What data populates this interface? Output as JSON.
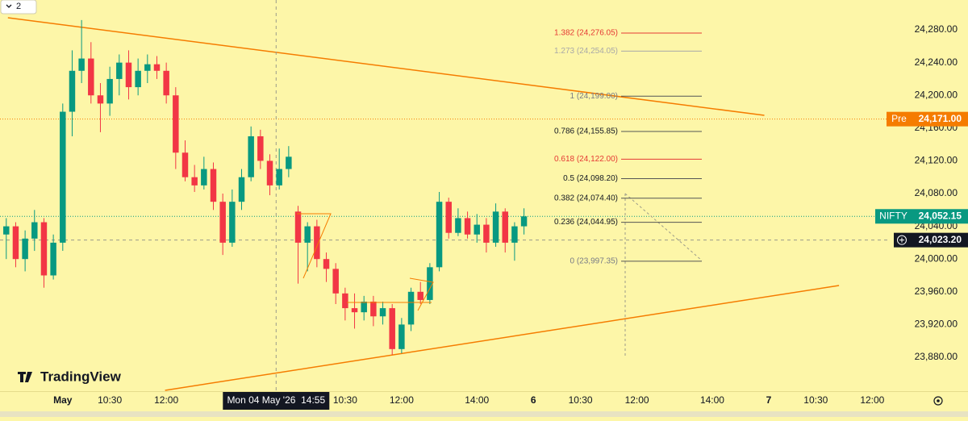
{
  "chart_data": {
    "type": "candlestick",
    "legend_toggle": "2",
    "watermark": "TradingView",
    "up_color": "#089981",
    "down_color": "#f23645",
    "xlim": [
      -100,
      1314
    ],
    "ylim": [
      23838.6,
      24316.5
    ],
    "xticks": [
      {
        "value": 0,
        "label": "May"
      },
      {
        "value": 75,
        "label": "10:30"
      },
      {
        "value": 165,
        "label": "12:00"
      },
      {
        "value": 450,
        "label": "10:30"
      },
      {
        "value": 540,
        "label": "12:00"
      },
      {
        "value": 660,
        "label": "14:00"
      },
      {
        "value": 750,
        "label": "6"
      },
      {
        "value": 825,
        "label": "10:30"
      },
      {
        "value": 915,
        "label": "12:00"
      },
      {
        "value": 1035,
        "label": "14:00"
      },
      {
        "value": 1125,
        "label": "7"
      },
      {
        "value": 1200,
        "label": "10:30"
      },
      {
        "value": 1290,
        "label": "12:00"
      }
    ],
    "yticks": [
      {
        "value": 23880,
        "label": "23,880.00"
      },
      {
        "value": 23920,
        "label": "23,920.00"
      },
      {
        "value": 23960,
        "label": "23,960.00"
      },
      {
        "value": 24000,
        "label": "24,000.00"
      },
      {
        "value": 24040,
        "label": "24,040.00"
      },
      {
        "value": 24080,
        "label": "24,080.00"
      },
      {
        "value": 24120,
        "label": "24,120.00"
      },
      {
        "value": 24160,
        "label": "24,160.00"
      },
      {
        "value": 24200,
        "label": "24,200.00"
      },
      {
        "value": 24240,
        "label": "24,240.00"
      },
      {
        "value": 24280,
        "label": "24,280.00"
      }
    ],
    "x": [
      -90,
      -75,
      -60,
      -45,
      -30,
      -15,
      0,
      15,
      30,
      45,
      60,
      75,
      90,
      105,
      120,
      135,
      150,
      165,
      180,
      195,
      210,
      225,
      240,
      255,
      270,
      285,
      300,
      315,
      330,
      345,
      360,
      375,
      390,
      405,
      420,
      435,
      450,
      465,
      480,
      495,
      510,
      525,
      540,
      555,
      570,
      585,
      600,
      615,
      630,
      645,
      660,
      675,
      690,
      705,
      720,
      735
    ],
    "open": [
      24030,
      24040,
      24000,
      24025,
      24045,
      23980,
      24020,
      24180,
      24230,
      24245,
      24200,
      24190,
      24220,
      24240,
      24210,
      24230,
      24238,
      24230,
      24200,
      24130,
      24100,
      24090,
      24110,
      24070,
      24020,
      24070,
      24100,
      24150,
      24120,
      24090,
      24110,
      24058,
      24020,
      24040,
      24000,
      23988,
      23958,
      23940,
      23935,
      23948,
      23930,
      23940,
      23890,
      23920,
      23960,
      23950,
      23990,
      24070,
      24032,
      24050,
      24030,
      24042,
      24020,
      24058,
      24020,
      24040
    ],
    "high": [
      24050,
      24045,
      24035,
      24060,
      24050,
      24030,
      24190,
      24255,
      24292,
      24265,
      24215,
      24235,
      24250,
      24255,
      24245,
      24250,
      24248,
      24240,
      24210,
      24145,
      24115,
      24125,
      24118,
      24080,
      24085,
      24110,
      24162,
      24158,
      24128,
      24135,
      24138,
      24065,
      24045,
      24048,
      24008,
      23995,
      23965,
      23958,
      23955,
      23955,
      23948,
      23945,
      23928,
      23965,
      23972,
      23995,
      24082,
      24075,
      24062,
      24058,
      24055,
      24050,
      24068,
      24062,
      24045,
      24062
    ],
    "low": [
      24000,
      23990,
      23985,
      24010,
      23965,
      23975,
      24010,
      24150,
      24215,
      24190,
      24155,
      24175,
      24200,
      24195,
      24200,
      24215,
      24220,
      24190,
      24110,
      24095,
      24082,
      24085,
      24060,
      24005,
      24015,
      24060,
      24095,
      24110,
      24078,
      24085,
      24100,
      23970,
      23985,
      23990,
      23972,
      23945,
      23925,
      23915,
      23925,
      23918,
      23920,
      23883,
      23885,
      23912,
      23945,
      23945,
      23985,
      24025,
      24028,
      24025,
      24020,
      24008,
      24015,
      24008,
      23998,
      24030
    ],
    "close": [
      24040,
      24000,
      24025,
      24045,
      23980,
      24020,
      24180,
      24230,
      24245,
      24200,
      24190,
      24220,
      24240,
      24210,
      24230,
      24238,
      24230,
      24200,
      24130,
      24100,
      24090,
      24110,
      24070,
      24020,
      24070,
      24100,
      24150,
      24120,
      24090,
      24110,
      24125,
      24020,
      24040,
      24000,
      23988,
      23958,
      23940,
      23935,
      23948,
      23930,
      23940,
      23890,
      23920,
      23960,
      23950,
      23990,
      24070,
      24032,
      24050,
      24030,
      24042,
      24020,
      24058,
      24020,
      24040,
      24052.15
    ],
    "trendlines": [
      {
        "x1": -87.4,
        "y1": 24294.8,
        "x2": 1118,
        "y2": 24175.6,
        "color": "#f57c00"
      },
      {
        "x1": 163,
        "y1": 23839.6,
        "x2": 1237,
        "y2": 23967.7,
        "color": "#f57c00"
      }
    ],
    "fib_levels": [
      {
        "label": "1.382 (24,276.05)",
        "value": 24276.05,
        "color": "#e53935"
      },
      {
        "label": "1.273 (24,254.05)",
        "value": 24254.05,
        "color": "#a8a8a8"
      },
      {
        "label": "1 (24,199.00)",
        "value": 24199,
        "color": "#787b86"
      },
      {
        "label": "0.786 (24,155.85)",
        "value": 24155.85,
        "color": "#131722"
      },
      {
        "label": "0.618 (24,122.00)",
        "value": 24122,
        "color": "#e53935"
      },
      {
        "label": "0.5 (24,098.20)",
        "value": 24098.2,
        "color": "#131722"
      },
      {
        "label": "0.382 (24,074.40)",
        "value": 24074.4,
        "color": "#131722"
      },
      {
        "label": "0.236 (24,044.95)",
        "value": 24044.95,
        "color": "#131722"
      },
      {
        "label": "0 (23,997.35)",
        "value": 23997.35,
        "color": "#787b86"
      }
    ],
    "price_labels": [
      {
        "tag": "Pre",
        "value": 24171,
        "label": "24,171.00",
        "color": "#f57c00"
      },
      {
        "tag": "NIFTY",
        "value": 24052.15,
        "label": "24,052.15",
        "color": "#089981"
      }
    ],
    "crosshair": {
      "x": 340,
      "x_label": "Mon 04 May '26  14:55",
      "y": 24023.2,
      "y_label": "24,023.20"
    }
  }
}
